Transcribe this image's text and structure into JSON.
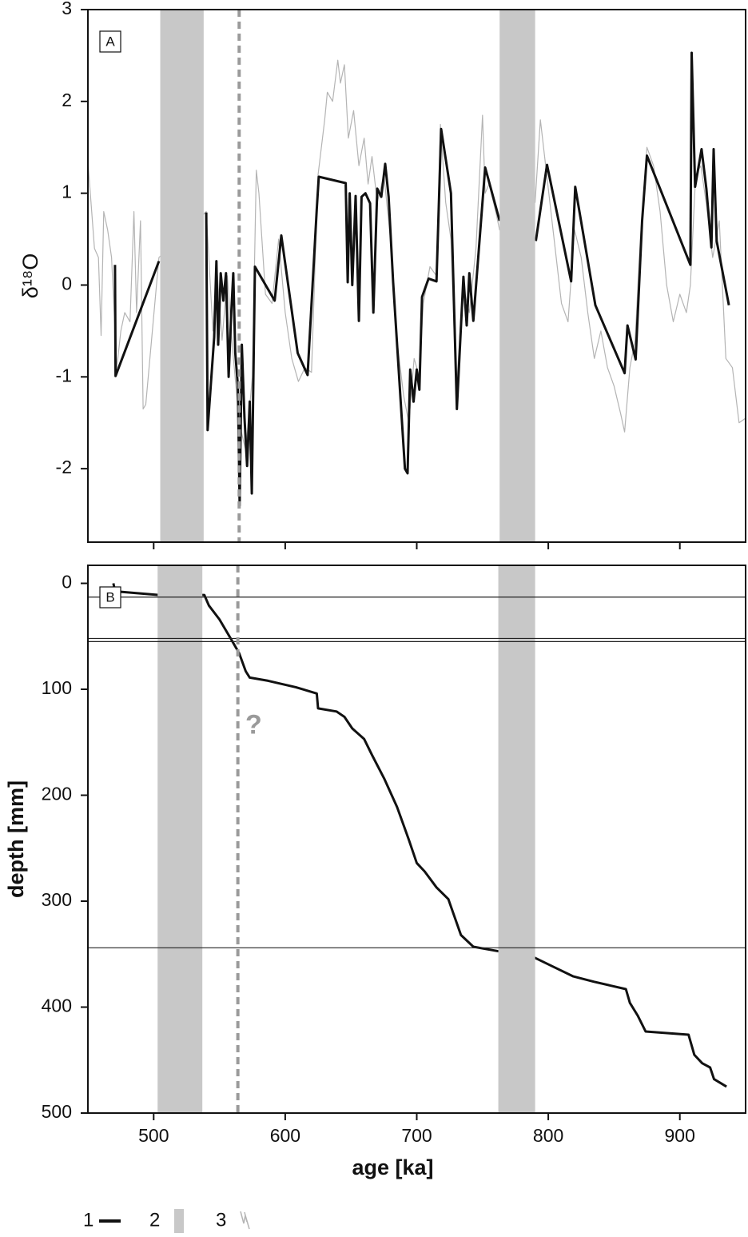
{
  "chart_data": [
    {
      "type": "line",
      "panel_label": "A",
      "ylabel": "δ¹⁸O",
      "xlim": [
        450,
        950
      ],
      "xticks": [
        500,
        600,
        700,
        800,
        900
      ],
      "xtick_labels": false,
      "ylim": [
        -2.8,
        3
      ],
      "yticks": [
        -2,
        -1,
        0,
        1,
        2,
        3
      ],
      "bands": {
        "name": "2",
        "color": "#c8c8c8",
        "ranges": [
          [
            505,
            538
          ],
          [
            763,
            790
          ]
        ]
      },
      "vline": {
        "x": 565,
        "color": "#9a9a9a",
        "dashed": true
      },
      "series": [
        {
          "name": "3",
          "color": "#b4b4b4",
          "width": 1.2,
          "x": [
            450,
            455,
            458,
            460,
            462,
            465,
            468,
            472,
            475,
            478,
            482,
            485,
            487,
            490,
            492,
            494,
            504,
            540,
            545,
            548,
            552,
            556,
            560,
            565,
            570,
            575,
            578,
            580,
            585,
            590,
            595,
            600,
            605,
            610,
            615,
            620,
            625,
            630,
            632,
            636,
            640,
            642,
            645,
            648,
            652,
            656,
            660,
            663,
            666,
            670,
            675,
            680,
            685,
            690,
            694,
            698,
            702,
            705,
            710,
            715,
            718,
            722,
            726,
            730,
            735,
            740,
            745,
            750,
            752,
            755,
            760,
            763,
            790,
            794,
            798,
            802,
            806,
            810,
            815,
            820,
            825,
            830,
            835,
            840,
            845,
            850,
            855,
            858,
            862,
            866,
            870,
            875,
            880,
            885,
            890,
            895,
            900,
            905,
            908,
            912,
            916,
            920,
            925,
            930,
            935,
            940,
            945,
            950
          ],
          "values": [
            1.35,
            0.4,
            0.3,
            -0.55,
            0.8,
            0.6,
            0.3,
            -0.9,
            -0.5,
            -0.3,
            -0.4,
            0.8,
            -0.3,
            0.7,
            -1.35,
            -1.3,
            0.3,
            0.8,
            -0.5,
            0.2,
            -0.6,
            0.1,
            -0.7,
            -1.5,
            -1.8,
            -1,
            1.25,
            1,
            -0.1,
            -0.2,
            0.5,
            -0.3,
            -0.8,
            -1.05,
            -0.9,
            -0.95,
            1.2,
            1.8,
            2.1,
            2,
            2.45,
            2.2,
            2.4,
            1.6,
            1.9,
            1.3,
            1.6,
            1.1,
            1.4,
            0.9,
            1.2,
            0.5,
            -0.6,
            -1.2,
            -1.5,
            -0.8,
            -1,
            -0.2,
            0.2,
            0.1,
            1.75,
            0.9,
            0.5,
            -1.2,
            0,
            -0.3,
            0.4,
            1.85,
            1,
            1.1,
            0.8,
            0.6,
            0.9,
            1.8,
            1.3,
            0.8,
            0.3,
            -0.2,
            -0.4,
            0.6,
            0.3,
            -0.3,
            -0.8,
            -0.5,
            -0.9,
            -1.1,
            -1.4,
            -1.6,
            -0.9,
            -0.6,
            0.5,
            1.5,
            1.3,
            0.8,
            0,
            -0.4,
            -0.1,
            -0.3,
            0,
            1.2,
            1.3,
            0.9,
            0.3,
            0.7,
            -0.8,
            -0.9,
            -1.5,
            -1.45
          ]
        },
        {
          "name": "1",
          "color": "#111111",
          "width": 3,
          "x": [
            470.6,
            471,
            504,
            null,
            540,
            541,
            546,
            547.7,
            549,
            551,
            553,
            555,
            557,
            559,
            560.5,
            562,
            564,
            565.4,
            567,
            569,
            571,
            573,
            574.6,
            577,
            592,
            597,
            609.5,
            617,
            624,
            625.5,
            646,
            647.5,
            649,
            651,
            653.5,
            656,
            658,
            661,
            664.5,
            667,
            670,
            673,
            676,
            678.6,
            682,
            691,
            693,
            695,
            697.6,
            700,
            702,
            704,
            709,
            715,
            718.5,
            726,
            730.5,
            735.5,
            738,
            740,
            743,
            752,
            763,
            null,
            790.5,
            799,
            817.4,
            820.5,
            835.8,
            858,
            860.2,
            866.4,
            871.3,
            875,
            908,
            909,
            911.6,
            916.5,
            920.2,
            924,
            925.7,
            928,
            937.3
          ],
          "values": [
            0.22,
            -0.99,
            0.26,
            null,
            0.79,
            -1.58,
            -0.57,
            0.26,
            -0.65,
            0.13,
            -0.17,
            0.13,
            -1,
            -0.3,
            0.13,
            -0.74,
            -1.09,
            -2.4,
            -0.65,
            -1.44,
            -1.97,
            -1.27,
            -2.27,
            0.2,
            -0.17,
            0.54,
            -0.74,
            -0.98,
            0.83,
            1.18,
            1.11,
            0.03,
            1,
            0,
            0.97,
            -0.39,
            0.96,
            1,
            0.89,
            -0.3,
            1.05,
            0.96,
            1.32,
            0.96,
            0.04,
            -2,
            -2.05,
            -0.92,
            -1.27,
            -0.92,
            -1.14,
            -0.13,
            0.07,
            0.04,
            1.7,
            1,
            -1.35,
            0.09,
            -0.44,
            0.13,
            -0.39,
            1.28,
            0.7,
            null,
            0.48,
            1.31,
            0.04,
            1.07,
            -0.22,
            -0.96,
            -0.44,
            -0.81,
            0.7,
            1.41,
            0.22,
            2.53,
            1.07,
            1.48,
            1.05,
            0.41,
            1.48,
            0.48,
            -0.22
          ]
        }
      ]
    },
    {
      "type": "line",
      "panel_label": "B",
      "ylabel": "depth [mm]",
      "xlabel": "age [ka]",
      "xlim": [
        450,
        950
      ],
      "xticks": [
        500,
        600,
        700,
        800,
        900
      ],
      "xtick_labels": true,
      "ylim": [
        -17,
        500
      ],
      "y_inverted": true,
      "yticks": [
        0,
        100,
        200,
        300,
        400,
        500
      ],
      "bands": {
        "color": "#c8c8c8",
        "ranges": [
          [
            503,
            537
          ],
          [
            762,
            790
          ]
        ]
      },
      "vline": {
        "x": 564,
        "color": "#9a9a9a",
        "dashed": true
      },
      "hlines": [
        13,
        52,
        55,
        344
      ],
      "annotation": {
        "text": "?",
        "x": 576,
        "y": 135
      },
      "series": [
        {
          "color": "#111111",
          "width": 3,
          "x": [
            469.4,
            470.6,
            504,
            538.5,
            542,
            550,
            559,
            565,
            570,
            573,
            587,
            608,
            624,
            625,
            639,
            645,
            651,
            660,
            666,
            675.5,
            685,
            694,
            700,
            706,
            715,
            724,
            733.6,
            743,
            761,
            789,
            804,
            819,
            834.5,
            859,
            862,
            868,
            874,
            906.6,
            911,
            917,
            923,
            926,
            935.5
          ],
          "values": [
            0,
            7.5,
            11,
            11,
            21,
            34,
            53,
            66,
            83,
            89,
            92,
            98,
            104,
            118,
            121,
            126,
            137,
            147,
            162,
            185,
            211,
            242,
            264,
            272,
            287,
            298,
            332,
            343,
            347,
            353,
            362,
            371,
            376,
            383,
            396,
            408,
            423,
            426,
            445,
            453,
            457,
            468,
            475
          ]
        }
      ]
    }
  ]
}
